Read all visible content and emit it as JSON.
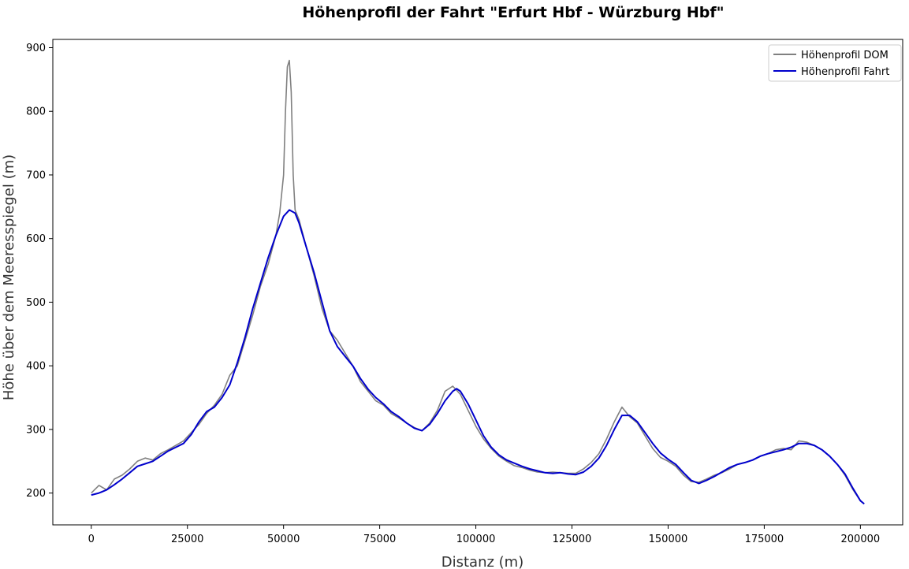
{
  "chart_data": {
    "type": "line",
    "title": "Höhenprofil der Fahrt \"Erfurt Hbf - Würzburg Hbf\"",
    "xlabel": "Distanz (m)",
    "ylabel": "Höhe über dem Meeresspiegel (m)",
    "xlim": [
      -10000,
      211000
    ],
    "ylim": [
      150,
      913
    ],
    "xticks": [
      0,
      25000,
      50000,
      75000,
      100000,
      125000,
      150000,
      175000,
      200000
    ],
    "yticks": [
      200,
      300,
      400,
      500,
      600,
      700,
      800,
      900
    ],
    "legend_position": "top-right",
    "grid": false,
    "series": [
      {
        "name": "Höhenprofil DOM",
        "color": "#808080",
        "x": [
          0,
          2000,
          4000,
          6000,
          8000,
          10000,
          12000,
          14000,
          16000,
          18000,
          20000,
          22000,
          24000,
          26000,
          28000,
          30000,
          32000,
          34000,
          36000,
          38000,
          40000,
          42000,
          44000,
          46000,
          48000,
          49000,
          50000,
          50500,
          51000,
          51500,
          52000,
          52500,
          53000,
          54000,
          56000,
          58000,
          60000,
          62000,
          64000,
          66000,
          68000,
          70000,
          72000,
          74000,
          76000,
          78000,
          80000,
          82000,
          84000,
          86000,
          88000,
          90000,
          92000,
          94000,
          96000,
          98000,
          100000,
          102000,
          104000,
          106000,
          108000,
          110000,
          112000,
          114000,
          116000,
          118000,
          120000,
          122000,
          124000,
          126000,
          128000,
          130000,
          132000,
          134000,
          136000,
          138000,
          140000,
          142000,
          144000,
          146000,
          148000,
          150000,
          152000,
          154000,
          156000,
          158000,
          160000,
          162000,
          164000,
          166000,
          168000,
          170000,
          172000,
          174000,
          176000,
          178000,
          180000,
          182000,
          184000,
          186000,
          188000,
          190000,
          192000,
          194000,
          196000,
          198000,
          200000,
          201000
        ],
        "y": [
          200,
          212,
          205,
          222,
          228,
          238,
          250,
          255,
          252,
          262,
          268,
          275,
          282,
          295,
          308,
          325,
          338,
          355,
          385,
          400,
          440,
          480,
          525,
          560,
          605,
          640,
          700,
          800,
          870,
          880,
          830,
          700,
          645,
          630,
          585,
          540,
          490,
          455,
          440,
          420,
          400,
          375,
          360,
          345,
          338,
          325,
          318,
          310,
          303,
          298,
          310,
          330,
          360,
          368,
          355,
          330,
          305,
          285,
          270,
          258,
          250,
          243,
          240,
          236,
          233,
          232,
          233,
          232,
          231,
          231,
          238,
          248,
          262,
          285,
          312,
          335,
          320,
          310,
          290,
          270,
          256,
          250,
          242,
          228,
          218,
          217,
          222,
          228,
          232,
          238,
          245,
          248,
          252,
          258,
          262,
          268,
          270,
          268,
          282,
          280,
          275,
          268,
          258,
          245,
          228,
          206,
          188,
          183
        ]
      },
      {
        "name": "Höhenprofil Fahrt",
        "color": "#0000cc",
        "x": [
          0,
          2000,
          4000,
          6000,
          8000,
          10000,
          12000,
          14000,
          16000,
          18000,
          20000,
          22000,
          24000,
          26000,
          28000,
          30000,
          32000,
          34000,
          36000,
          38000,
          40000,
          42000,
          44000,
          46000,
          48000,
          50000,
          51500,
          53000,
          54000,
          56000,
          58000,
          60000,
          62000,
          64000,
          66000,
          68000,
          70000,
          72000,
          74000,
          76000,
          78000,
          80000,
          82000,
          84000,
          86000,
          88000,
          90000,
          92000,
          94000,
          95000,
          96000,
          98000,
          100000,
          102000,
          104000,
          106000,
          108000,
          110000,
          112000,
          114000,
          116000,
          118000,
          120000,
          122000,
          124000,
          126000,
          128000,
          130000,
          132000,
          134000,
          136000,
          138000,
          140000,
          142000,
          144000,
          146000,
          148000,
          150000,
          152000,
          154000,
          156000,
          158000,
          160000,
          162000,
          164000,
          166000,
          168000,
          170000,
          172000,
          174000,
          176000,
          178000,
          180000,
          182000,
          184000,
          186000,
          188000,
          190000,
          192000,
          194000,
          196000,
          198000,
          200000,
          201000
        ],
        "y": [
          197,
          200,
          205,
          213,
          222,
          232,
          242,
          246,
          250,
          258,
          266,
          272,
          278,
          292,
          312,
          328,
          335,
          350,
          370,
          405,
          445,
          490,
          530,
          570,
          605,
          635,
          645,
          640,
          625,
          585,
          545,
          500,
          455,
          430,
          415,
          400,
          380,
          363,
          350,
          340,
          328,
          320,
          310,
          302,
          298,
          308,
          325,
          345,
          360,
          364,
          360,
          340,
          315,
          290,
          272,
          260,
          252,
          247,
          242,
          238,
          235,
          232,
          231,
          232,
          230,
          229,
          233,
          242,
          255,
          275,
          300,
          322,
          322,
          312,
          295,
          278,
          263,
          253,
          245,
          232,
          220,
          215,
          220,
          226,
          233,
          240,
          245,
          248,
          252,
          258,
          262,
          265,
          268,
          272,
          278,
          278,
          275,
          268,
          258,
          245,
          230,
          208,
          188,
          183
        ]
      }
    ]
  }
}
